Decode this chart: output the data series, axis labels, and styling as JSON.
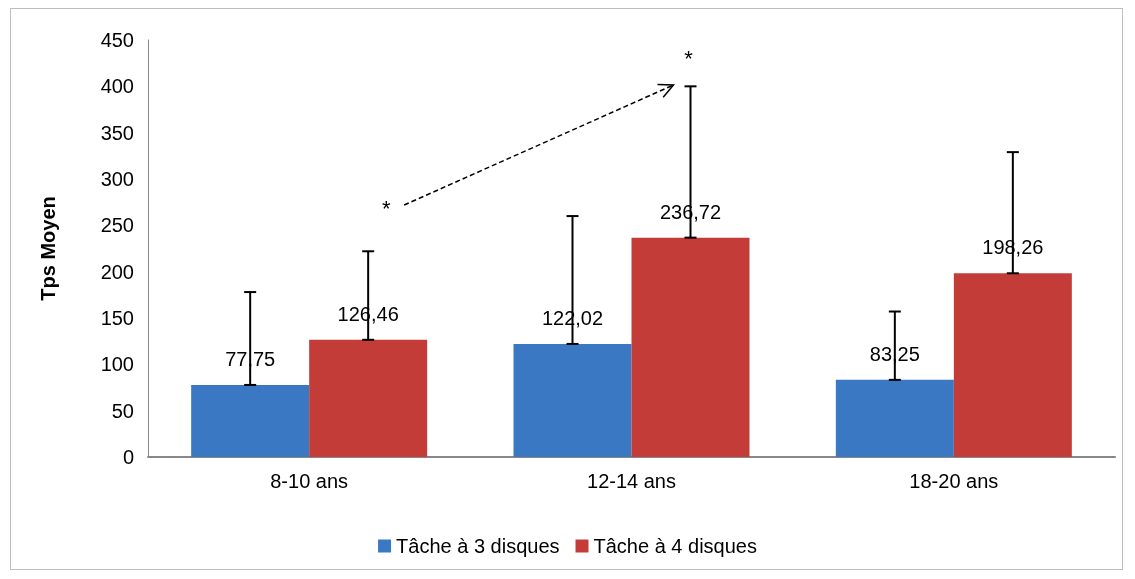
{
  "chart_data": {
    "type": "bar",
    "ylabel": "Tps Moyen",
    "categories": [
      "8-10 ans",
      "12-14 ans",
      "18-20 ans"
    ],
    "series": [
      {
        "name": "Tâche à 3 disques",
        "color": "#3b78c4",
        "values": [
          77.75,
          122.02,
          83.25
        ],
        "value_labels": [
          "77,75",
          "122,02",
          "83,25"
        ],
        "errors": [
          [
            77.75,
            178
          ],
          [
            122.02,
            260
          ],
          [
            83.25,
            157
          ]
        ]
      },
      {
        "name": "Tâche à 4 disques",
        "color": "#c43c38",
        "values": [
          126.46,
          236.72,
          198.26
        ],
        "value_labels": [
          "126,46",
          "236,72",
          "198,26"
        ],
        "errors": [
          [
            126.46,
            222
          ],
          [
            236.72,
            400
          ],
          [
            198.26,
            329
          ]
        ]
      }
    ],
    "ylim": [
      0,
      450
    ],
    "yticks": [
      0,
      50,
      100,
      150,
      200,
      250,
      300,
      350,
      400,
      450
    ],
    "annotations": [
      "*",
      "*"
    ],
    "grid": false,
    "legend": "bottom"
  }
}
